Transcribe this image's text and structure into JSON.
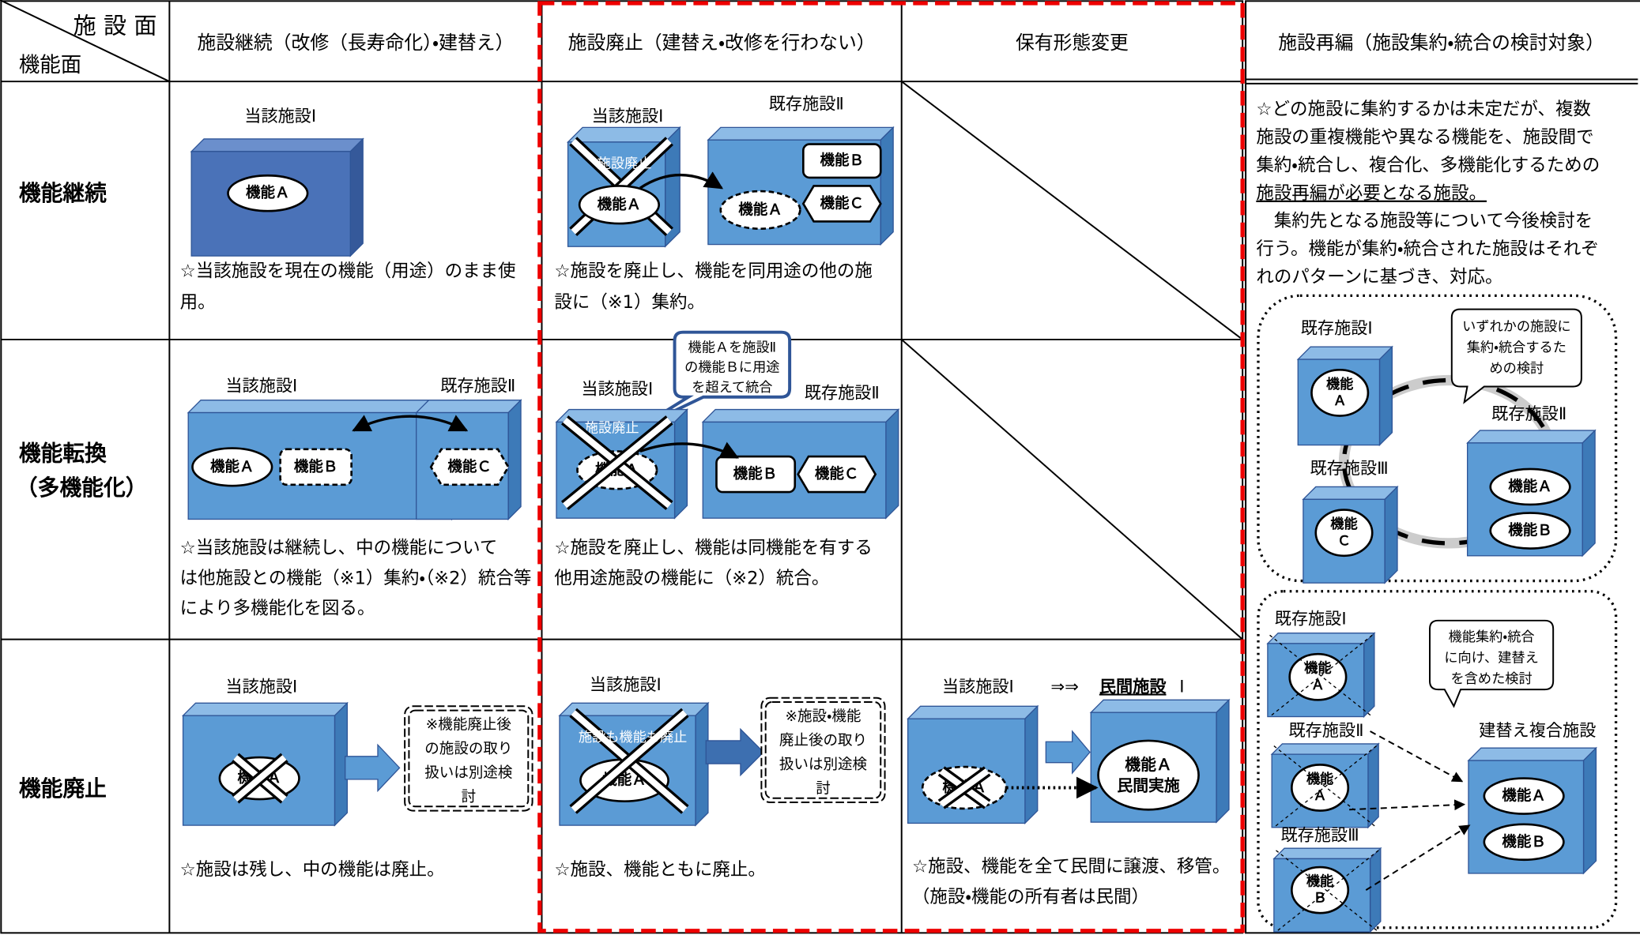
{
  "header": {
    "corner_top": "施 設 面",
    "corner_bottom": "機能面",
    "columns": [
      "施設継続（改修（長寿命化）・建替え）",
      "施設廃止（建替え・改修を行わない）",
      "保有形態変更",
      "施設再編（施設集約・統合の検討対象）"
    ]
  },
  "rows": [
    {
      "label": [
        "機能継続"
      ]
    },
    {
      "label": [
        "機能転換",
        "（多機能化）"
      ]
    },
    {
      "label": [
        "機能廃止"
      ]
    }
  ],
  "cells": {
    "row1_col1": {
      "facility": "当該施設Ⅰ",
      "function": "機能Ａ",
      "description": [
        "☆当該施設を現在の機能（用途）のまま使",
        "用。"
      ]
    },
    "row1_col2": {
      "facility1": "当該施設Ⅰ",
      "facility2": "既存施設Ⅱ",
      "abolished": "施設廃止",
      "function_a": "機能Ａ",
      "function_a_moved": "機能Ａ",
      "function_b": "機能Ｂ",
      "function_c": "機能Ｃ",
      "description": [
        "☆施設を廃止し、機能を同用途の他の施",
        "設に（※1）集約。"
      ]
    },
    "row2_col1": {
      "facility1": "当該施設Ⅰ",
      "facility2": "既存施設Ⅱ",
      "function_a": "機能Ａ",
      "function_b": "機能Ｂ",
      "function_c": "機能Ｃ",
      "description": [
        "☆当該施設は継続し、中の機能について",
        "は他施設との機能（※1）集約・（※2）統合等",
        "により多機能化を図る。"
      ]
    },
    "row2_col2": {
      "callout": [
        "機能Ａを施設Ⅱ",
        "の機能Ｂに用途",
        "を超えて統合"
      ],
      "facility1": "当該施設Ⅰ",
      "facility2": "既存施設Ⅱ",
      "abolished": "施設廃止",
      "function_a": "機能Ａ",
      "function_b": "機能Ｂ",
      "function_c": "機能Ｃ",
      "description": [
        "☆施設を廃止し、機能は同機能を有する",
        "他用途施設の機能に（※2）統合。"
      ]
    },
    "row3_col1": {
      "facility": "当該施設Ⅰ",
      "function": "機能Ａ",
      "note": [
        "※機能廃止後",
        "の施設の取り",
        "扱いは別途検",
        "討"
      ],
      "description": [
        "☆施設は残し、中の機能は廃止。"
      ]
    },
    "row3_col2": {
      "facility": "当該施設Ⅰ",
      "abolished": "施設も機能も廃止",
      "function": "機能Ａ",
      "note": [
        "※施設・機能",
        "廃止後の取り",
        "扱いは別途検",
        "討"
      ],
      "description": [
        "☆施設、機能ともに廃止。"
      ]
    },
    "row3_col3": {
      "facility": "当該施設Ⅰ",
      "arrow": "⇒⇒",
      "private": "民間施設",
      "private_suffix": "Ⅰ",
      "function_old": "機能Ａ",
      "function_new": "機能Ａ",
      "private_run": "民間実施",
      "description": [
        "☆施設、機能を全て民間に譲渡、移管。",
        "（施設・機能の所有者は民間）"
      ]
    }
  },
  "reorganization": {
    "text": [
      "☆どの施設に集約するかは未定だが、複数",
      "施設の重複機能や異なる機能を、施設間で",
      "集約・統合し、複合化、多機能化するための",
      "施設再編が必要となる施設。",
      "　集約先となる施設等について今後検討を",
      "行う。機能が集約・統合された施設はそれぞ",
      "れのパターンに基づき、対応。"
    ],
    "panel1": {
      "facility1": "既存施設Ⅰ",
      "facility2": "既存施設Ⅱ",
      "facility3": "既存施設Ⅲ",
      "callout": [
        "いずれかの施設に",
        "集約・統合するた",
        "めの検討"
      ],
      "func1": [
        "機能",
        "Ａ"
      ],
      "func3": [
        "機能",
        "Ｃ"
      ],
      "func2a": "機能Ａ",
      "func2b": "機能Ｂ"
    },
    "panel2": {
      "facility1": "既存施設Ⅰ",
      "facility2": "既存施設Ⅱ",
      "facility3": "既存施設Ⅲ",
      "new_facility": "建替え複合施設",
      "callout": [
        "機能集約・統合",
        "に向け、建替え",
        "を含めた検討"
      ],
      "func1": [
        "機能",
        "Ａ"
      ],
      "func2": [
        "機能",
        "Ａ"
      ],
      "func3": [
        "機能",
        "Ｂ"
      ],
      "new_a": "機能Ａ",
      "new_b": "機能Ｂ"
    }
  }
}
